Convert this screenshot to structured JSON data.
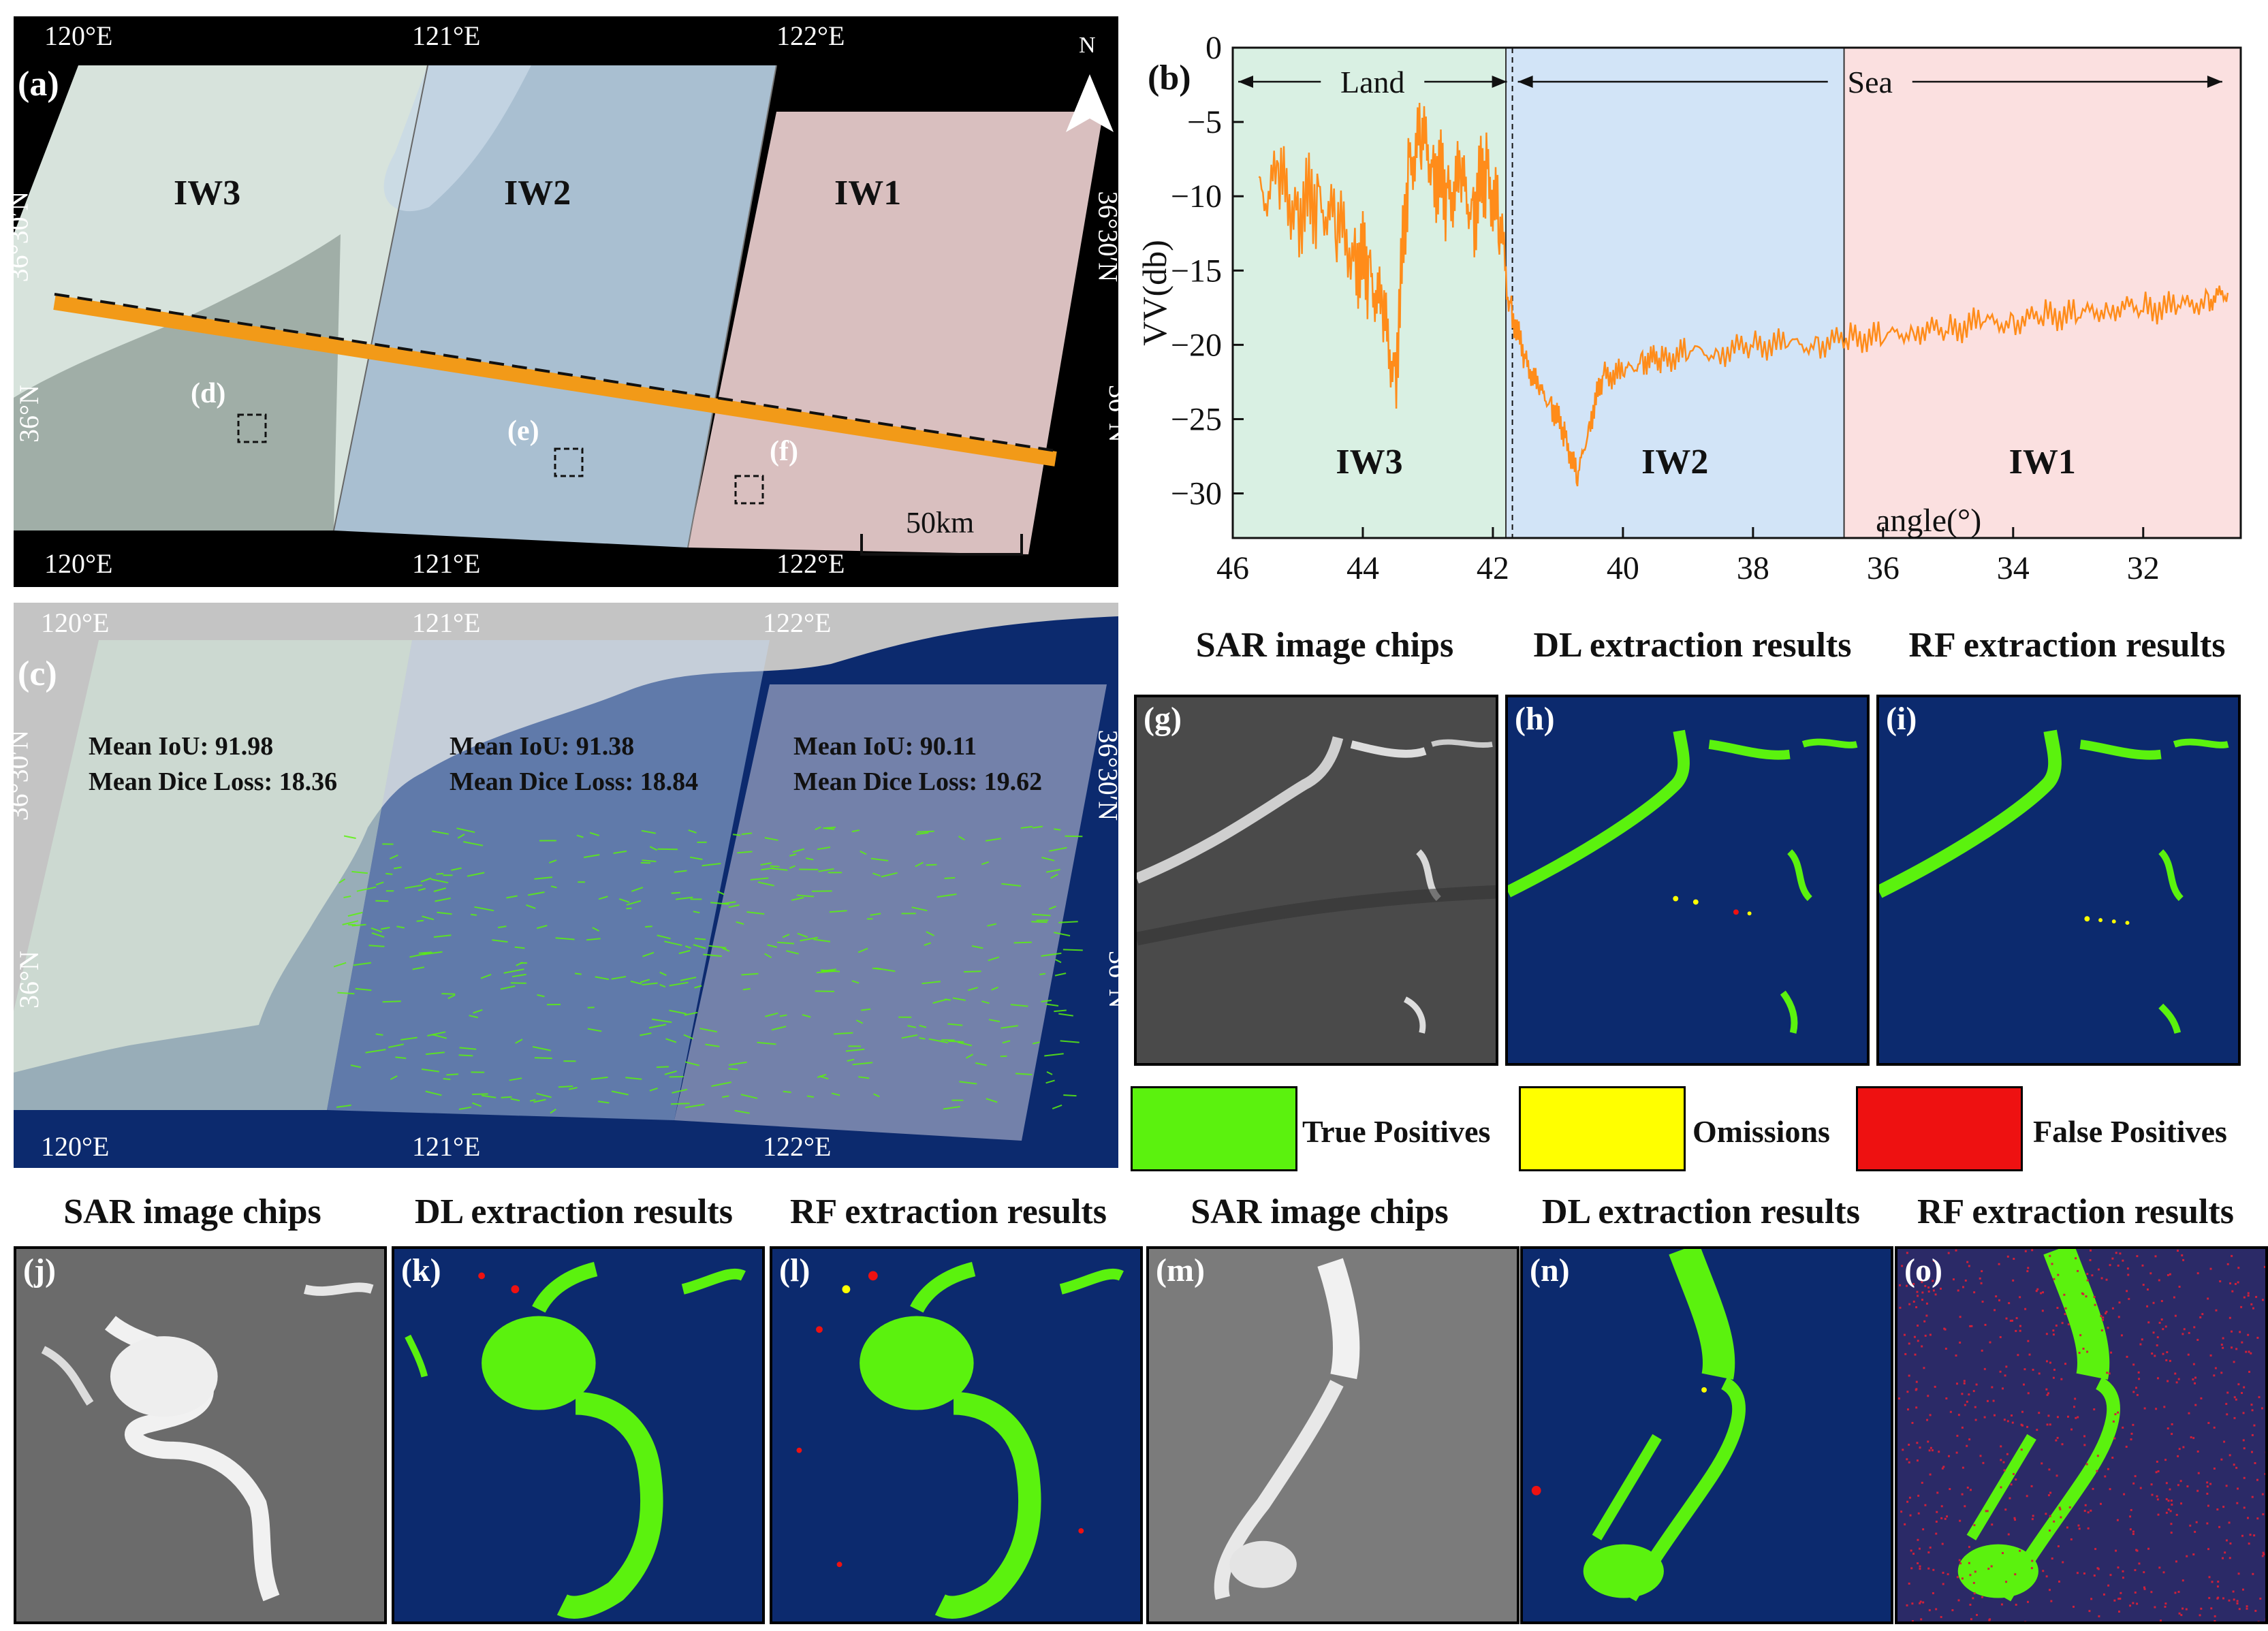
{
  "panels": {
    "a": {
      "letter": "(a)",
      "north": "N",
      "swaths": [
        "IW3",
        "IW2",
        "IW1"
      ],
      "lon_top": [
        "120°E",
        "121°E",
        "122°E"
      ],
      "lon_bottom": [
        "120°E",
        "121°E",
        "122°E"
      ],
      "lat_left": [
        "36°30′N",
        "36°N"
      ],
      "lat_right": [
        "36°30′N",
        "36°N"
      ],
      "markers": [
        "(d)",
        "(e)",
        "(f)"
      ],
      "scale": "50km"
    },
    "b": {
      "letter": "(b)"
    },
    "c": {
      "letter": "(c)",
      "lon_top": [
        "120°E",
        "121°E",
        "122°E"
      ],
      "lon_bottom": [
        "120°E",
        "121°E",
        "122°E"
      ],
      "lat_left": [
        "36°30′N",
        "36°N"
      ],
      "lat_right": [
        "36°30′N",
        "36°N"
      ],
      "metrics": [
        {
          "iou": "Mean IoU: 91.98",
          "dice": "Mean Dice Loss: 18.36"
        },
        {
          "iou": "Mean IoU: 91.38",
          "dice": "Mean Dice Loss: 18.84"
        },
        {
          "iou": "Mean IoU: 90.11",
          "dice": "Mean Dice Loss: 19.62"
        }
      ]
    }
  },
  "chip_titles": {
    "sar": "SAR image chips",
    "dl": "DL extraction results",
    "rf": "RF extraction results"
  },
  "chips": {
    "g": "(g)",
    "h": "(h)",
    "i": "(i)",
    "j": "(j)",
    "k": "(k)",
    "l": "(l)",
    "m": "(m)",
    "n": "(n)",
    "o": "(o)"
  },
  "legend": [
    {
      "label": "True Positives",
      "color": "#5bf20e"
    },
    {
      "label": "Omissions",
      "color": "#ffff00"
    },
    {
      "label": "False Positives",
      "color": "#ee1111"
    }
  ],
  "colors": {
    "sea": "#0c2a6e",
    "green": "#5bf20e",
    "orange": "#ff8c1a",
    "land_band": "#d9f0e3",
    "iw2_band": "#d2e4f7",
    "iw1_band": "#fbe0e0"
  },
  "chart_data": {
    "type": "line",
    "title": "",
    "xlabel": "angle(°)",
    "ylabel": "VV(db)",
    "xlim": [
      46,
      30.5
    ],
    "ylim": [
      -33,
      0
    ],
    "xticks": [
      46,
      44,
      42,
      40,
      38,
      36,
      34,
      32
    ],
    "yticks": [
      0,
      -5,
      -10,
      -15,
      -20,
      -25,
      -30
    ],
    "regions": [
      {
        "name": "IW3",
        "x": [
          46,
          41.8
        ]
      },
      {
        "name": "IW2",
        "x": [
          41.8,
          36.6
        ]
      },
      {
        "name": "IW1",
        "x": [
          36.6,
          30.5
        ]
      }
    ],
    "annotations": [
      {
        "text": "Land",
        "x": [
          46,
          41.7
        ]
      },
      {
        "text": "Sea",
        "x": [
          41.7,
          30.7
        ]
      }
    ],
    "coastline_x": 41.7,
    "series": [
      {
        "name": "VV backscatter",
        "x": [
          45.6,
          45.3,
          45.0,
          44.7,
          44.4,
          44.1,
          43.9,
          43.7,
          43.5,
          43.3,
          43.1,
          42.9,
          42.7,
          42.5,
          42.3,
          42.1,
          41.9,
          41.7,
          41.5,
          41.3,
          41.1,
          40.9,
          40.7,
          40.5,
          40.3,
          40.0,
          39.7,
          39.4,
          39.0,
          38.5,
          38.0,
          37.5,
          37.0,
          36.5,
          36.0,
          35.5,
          35.0,
          34.5,
          34.0,
          33.5,
          33.0,
          32.5,
          32.0,
          31.5,
          31.0,
          30.7
        ],
        "y": [
          -10,
          -9,
          -11,
          -10,
          -12,
          -14,
          -15,
          -18,
          -22,
          -8,
          -6,
          -8,
          -10,
          -9,
          -11,
          -8,
          -12,
          -18,
          -21,
          -23,
          -24,
          -26,
          -29,
          -25,
          -22,
          -22,
          -21,
          -21,
          -20.5,
          -20.5,
          -20,
          -20,
          -20,
          -19.5,
          -19.5,
          -19,
          -19,
          -18.5,
          -18.5,
          -18,
          -18,
          -17.5,
          -17.5,
          -17.5,
          -17,
          -16.5
        ]
      }
    ]
  }
}
